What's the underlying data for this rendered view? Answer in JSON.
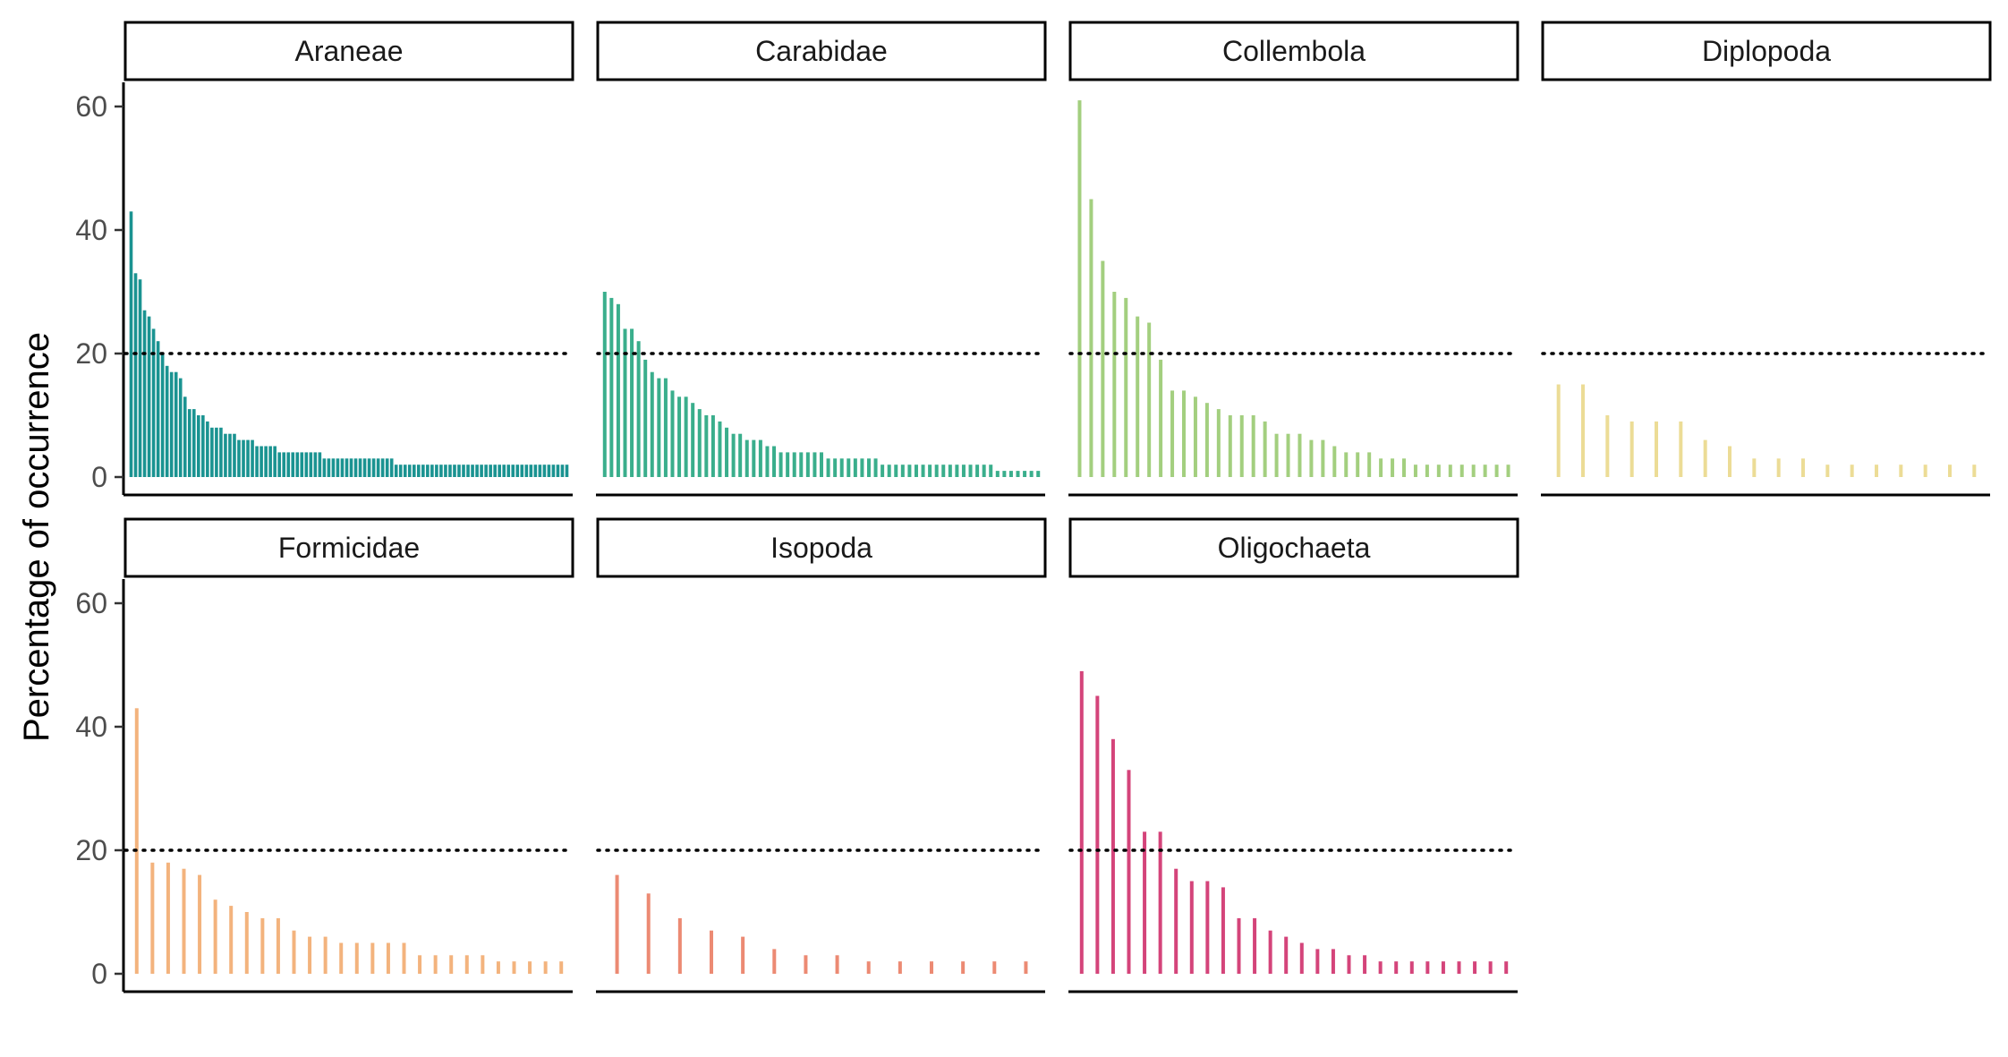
{
  "chart_data": {
    "type": "bar",
    "facet_layout": "facet_wrap, 4 columns, 2 rows",
    "ylabel": "Percentage of occurrence",
    "xlabel": "",
    "ylim": [
      0,
      63
    ],
    "yticks": [
      "0",
      "20",
      "40",
      "60"
    ],
    "reference_line": {
      "y": 20,
      "style": "dotted",
      "color": "#000000"
    },
    "x_axis": "taxa ranked by occurrence (no tick labels shown)",
    "grid": false,
    "legend": "none",
    "panels": [
      {
        "name": "Araneae",
        "color": "#1a9391",
        "values": [
          43,
          33,
          32,
          27,
          26,
          24,
          22,
          20,
          18,
          17,
          17,
          16,
          13,
          11,
          11,
          10,
          10,
          9,
          8,
          8,
          8,
          7,
          7,
          7,
          6,
          6,
          6,
          6,
          5,
          5,
          5,
          5,
          5,
          4,
          4,
          4,
          4,
          4,
          4,
          4,
          4,
          4,
          4,
          3,
          3,
          3,
          3,
          3,
          3,
          3,
          3,
          3,
          3,
          3,
          3,
          3,
          3,
          3,
          3,
          2,
          2,
          2,
          2,
          2,
          2,
          2,
          2,
          2,
          2,
          2,
          2,
          2,
          2,
          2,
          2,
          2,
          2,
          2,
          2,
          2,
          2,
          2,
          2,
          2,
          2,
          2,
          2,
          2,
          2,
          2,
          2,
          2,
          2,
          2,
          2,
          2,
          2,
          2
        ]
      },
      {
        "name": "Carabidae",
        "color": "#3aae8c",
        "values": [
          30,
          29,
          28,
          24,
          24,
          22,
          19,
          17,
          16,
          16,
          14,
          13,
          13,
          12,
          11,
          10,
          10,
          9,
          8,
          7,
          7,
          6,
          6,
          6,
          5,
          5,
          4,
          4,
          4,
          4,
          4,
          4,
          4,
          3,
          3,
          3,
          3,
          3,
          3,
          3,
          3,
          2,
          2,
          2,
          2,
          2,
          2,
          2,
          2,
          2,
          2,
          2,
          2,
          2,
          2,
          2,
          2,
          2,
          1,
          1,
          1,
          1,
          1,
          1,
          1
        ]
      },
      {
        "name": "Collembola",
        "color": "#a3cf7f",
        "values": [
          61,
          45,
          35,
          30,
          29,
          26,
          25,
          19,
          14,
          14,
          13,
          12,
          11,
          10,
          10,
          10,
          9,
          7,
          7,
          7,
          6,
          6,
          5,
          4,
          4,
          4,
          3,
          3,
          3,
          2,
          2,
          2,
          2,
          2,
          2,
          2,
          2,
          2
        ]
      },
      {
        "name": "Diplopoda",
        "color": "#ecdc96",
        "values": [
          15,
          15,
          10,
          9,
          9,
          9,
          6,
          5,
          3,
          3,
          3,
          2,
          2,
          2,
          2,
          2,
          2,
          2
        ]
      },
      {
        "name": "Formicidae",
        "color": "#f3b37d",
        "values": [
          43,
          18,
          18,
          17,
          16,
          12,
          11,
          10,
          9,
          9,
          7,
          6,
          6,
          5,
          5,
          5,
          5,
          5,
          3,
          3,
          3,
          3,
          3,
          2,
          2,
          2,
          2,
          2
        ]
      },
      {
        "name": "Isopoda",
        "color": "#ec8a73",
        "values": [
          16,
          13,
          9,
          7,
          6,
          4,
          3,
          3,
          2,
          2,
          2,
          2,
          2,
          2
        ]
      },
      {
        "name": "Oligochaeta",
        "color": "#d4447a",
        "values": [
          49,
          45,
          38,
          33,
          23,
          23,
          17,
          15,
          15,
          14,
          9,
          9,
          7,
          6,
          5,
          4,
          4,
          3,
          3,
          2,
          2,
          2,
          2,
          2,
          2,
          2,
          2,
          2
        ]
      }
    ]
  }
}
